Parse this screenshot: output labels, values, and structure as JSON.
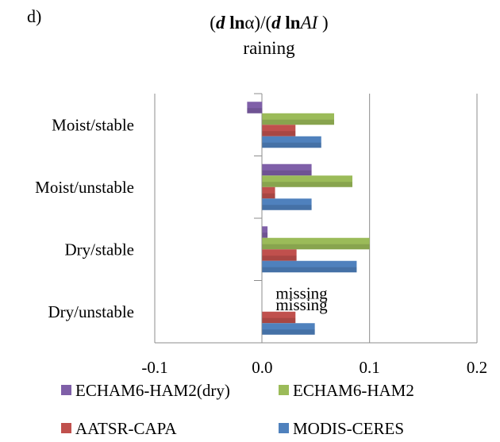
{
  "panel_label": "d)",
  "chart_data": {
    "type": "bar",
    "orientation": "horizontal",
    "title": {
      "parts": [
        {
          "text": "(",
          "bold": false,
          "italic": false
        },
        {
          "text": "d",
          "bold": true,
          "italic": true
        },
        {
          "text": " ln",
          "bold": true,
          "italic": false
        },
        {
          "text": "α)/(",
          "bold": false,
          "italic": false
        },
        {
          "text": "d",
          "bold": true,
          "italic": true
        },
        {
          "text": " ln",
          "bold": true,
          "italic": false
        },
        {
          "text": "AI",
          "bold": false,
          "italic": true
        },
        {
          "text": " )",
          "bold": false,
          "italic": false
        }
      ]
    },
    "subtitle": "raining",
    "categories": [
      "Moist/stable",
      "Moist/unstable",
      "Dry/stable",
      "Dry/unstable"
    ],
    "series": [
      {
        "name": "ECHAM6-HAM2(dry)",
        "color": "#7f5fa8",
        "values": [
          -0.014,
          0.046,
          0.005,
          null
        ]
      },
      {
        "name": "ECHAM6-HAM2",
        "color": "#9bbb59",
        "values": [
          0.067,
          0.084,
          0.1,
          null
        ]
      },
      {
        "name": "AATSR-CAPA",
        "color": "#c0504d",
        "values": [
          0.031,
          0.012,
          0.032,
          0.031
        ]
      },
      {
        "name": "MODIS-CERES",
        "color": "#4f81bd",
        "values": [
          0.055,
          0.046,
          0.088,
          0.049
        ]
      }
    ],
    "annotations": [
      {
        "text": "missing",
        "category": "Dry/unstable",
        "series": "ECHAM6-HAM2(dry)"
      },
      {
        "text": "missing",
        "category": "Dry/unstable",
        "series": "ECHAM6-HAM2"
      }
    ],
    "xlim": [
      -0.1,
      0.2
    ],
    "xticks": [
      -0.1,
      0.0,
      0.1,
      0.2
    ],
    "xtick_labels": [
      "-0.1",
      "0.0",
      "0.1",
      "0.2"
    ],
    "grid": true,
    "legend": {
      "position": "bottom",
      "entries": [
        "ECHAM6-HAM2(dry)",
        "ECHAM6-HAM2",
        "AATSR-CAPA",
        "MODIS-CERES"
      ]
    }
  }
}
